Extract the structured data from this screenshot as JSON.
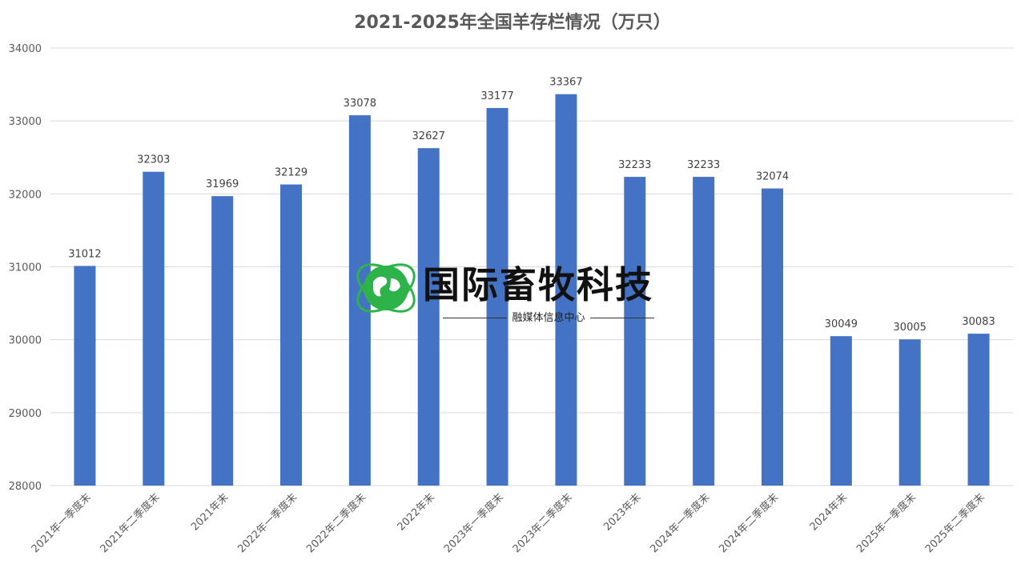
{
  "chart_data": {
    "type": "bar",
    "title": "2021-2025年全国羊存栏情况（万只）",
    "categories": [
      "2021年一季度末",
      "2021年二季度末",
      "2021年末",
      "2022年一季度末",
      "2022年二季度末",
      "2022年末",
      "2023年一季度末",
      "2023年二季度末",
      "2023年末",
      "2024年一季度末",
      "2024年二季度末",
      "2024年末",
      "2025年一季度末",
      "2025年二季度末"
    ],
    "values": [
      31012,
      32303,
      31969,
      32129,
      33078,
      32627,
      33177,
      33367,
      32233,
      32233,
      32074,
      30049,
      30005,
      30083
    ],
    "ylim": [
      28000,
      34000
    ],
    "yticks": [
      28000,
      29000,
      30000,
      31000,
      32000,
      33000,
      34000
    ],
    "grid": true,
    "bar_color": "#4472c4"
  },
  "watermark": {
    "name": "国际畜牧科技",
    "subtitle": "融媒体信息中心"
  }
}
